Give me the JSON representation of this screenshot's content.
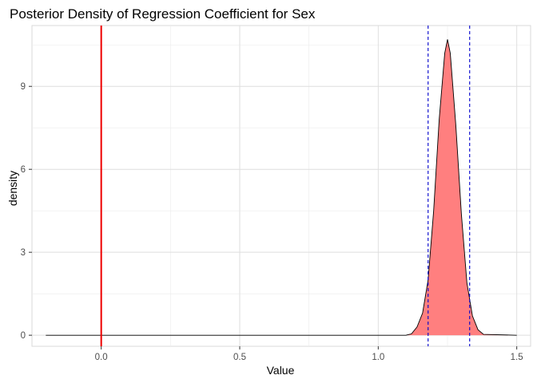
{
  "chart_data": {
    "type": "area",
    "title": "Posterior Density of Regression Coefficient for Sex",
    "xlabel": "Value",
    "ylabel": "density",
    "xlim": [
      -0.25,
      1.55
    ],
    "ylim": [
      -0.4,
      11.2
    ],
    "x_ticks": [
      0.0,
      0.5,
      1.0,
      1.5
    ],
    "x_tick_labels": [
      "0.0",
      "0.5",
      "1.0",
      "1.5"
    ],
    "y_ticks": [
      0,
      3,
      6,
      9
    ],
    "y_tick_labels": [
      "0",
      "3",
      "6",
      "9"
    ],
    "grid": true,
    "density": {
      "x": [
        -0.2,
        1.1,
        1.12,
        1.14,
        1.16,
        1.18,
        1.2,
        1.22,
        1.24,
        1.25,
        1.26,
        1.28,
        1.3,
        1.32,
        1.34,
        1.36,
        1.38,
        1.5
      ],
      "y": [
        0,
        0,
        0.05,
        0.3,
        0.8,
        2.0,
        4.5,
        7.8,
        10.2,
        10.7,
        10.2,
        7.6,
        4.4,
        1.9,
        0.7,
        0.2,
        0.03,
        0
      ],
      "fill": "#ff7f7f",
      "line_color": "#000000"
    },
    "reference_lines": [
      {
        "x": 0.0,
        "color": "#ee0000",
        "style": "solid"
      },
      {
        "x": 1.18,
        "color": "#0000cc",
        "style": "dashed"
      },
      {
        "x": 1.33,
        "color": "#0000cc",
        "style": "dashed"
      }
    ]
  }
}
